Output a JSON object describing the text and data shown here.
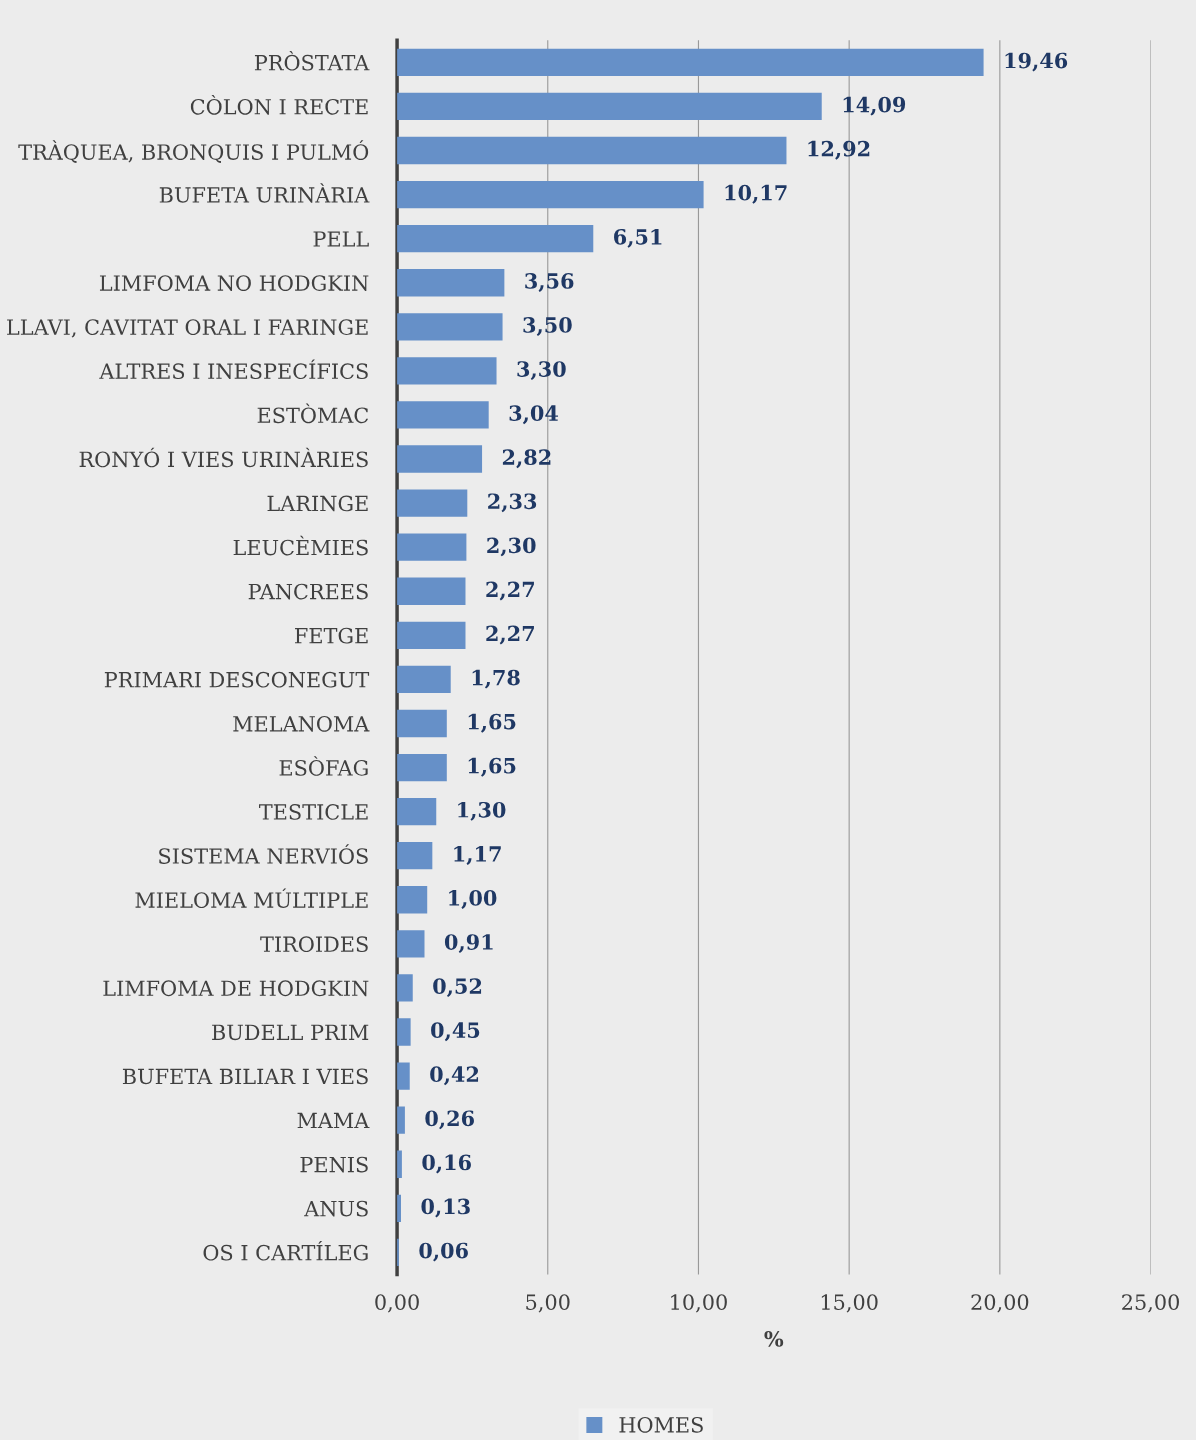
{
  "chart_data": {
    "type": "bar",
    "orientation": "horizontal",
    "xlabel": "%",
    "categories": [
      "PRÒSTATA",
      "CÒLON I RECTE",
      "TRÀQUEA, BRONQUIS I PULMÓ",
      "BUFETA URINÀRIA",
      "PELL",
      "LIMFOMA NO HODGKIN",
      "LLAVI, CAVITAT ORAL I FARINGE",
      "ALTRES I INESPECÍFICS",
      "ESTÒMAC",
      "RONYÓ I VIES URINÀRIES",
      "LARINGE",
      "LEUCÈMIES",
      "PANCREES",
      "FETGE",
      "PRIMARI DESCONEGUT",
      "MELANOMA",
      "ESÒFAG",
      "TESTICLE",
      "SISTEMA NERVIÓS",
      "MIELOMA MÚLTIPLE",
      "TIROIDES",
      "LIMFOMA DE HODGKIN",
      "BUDELL PRIM",
      "BUFETA BILIAR I VIES",
      "MAMA",
      "PENIS",
      "ANUS",
      "OS I CARTÍLEG"
    ],
    "series": [
      {
        "name": "HOMES",
        "color": "#6690c8",
        "values": [
          19.46,
          14.09,
          12.92,
          10.17,
          6.51,
          3.56,
          3.5,
          3.3,
          3.04,
          2.82,
          2.33,
          2.3,
          2.27,
          2.27,
          1.78,
          1.65,
          1.65,
          1.3,
          1.17,
          1.0,
          0.91,
          0.52,
          0.45,
          0.42,
          0.26,
          0.16,
          0.13,
          0.06
        ],
        "value_labels": [
          "19,46",
          "14,09",
          "12,92",
          "10,17",
          "6,51",
          "3,56",
          "3,50",
          "3,30",
          "3,04",
          "2,82",
          "2,33",
          "2,30",
          "2,27",
          "2,27",
          "1,78",
          "1,65",
          "1,65",
          "1,30",
          "1,17",
          "1,00",
          "0,91",
          "0,52",
          "0,45",
          "0,42",
          "0,26",
          "0,16",
          "0,13",
          "0,06"
        ]
      }
    ],
    "xlim": [
      0,
      25
    ],
    "xticks": [
      {
        "value": 0,
        "label": "0,00"
      },
      {
        "value": 5,
        "label": "5,00"
      },
      {
        "value": 10,
        "label": "10,00"
      },
      {
        "value": 15,
        "label": "15,00"
      },
      {
        "value": 20,
        "label": "20,00"
      },
      {
        "value": 25,
        "label": "25,00"
      }
    ],
    "grid": "x",
    "legend": "bottom"
  }
}
